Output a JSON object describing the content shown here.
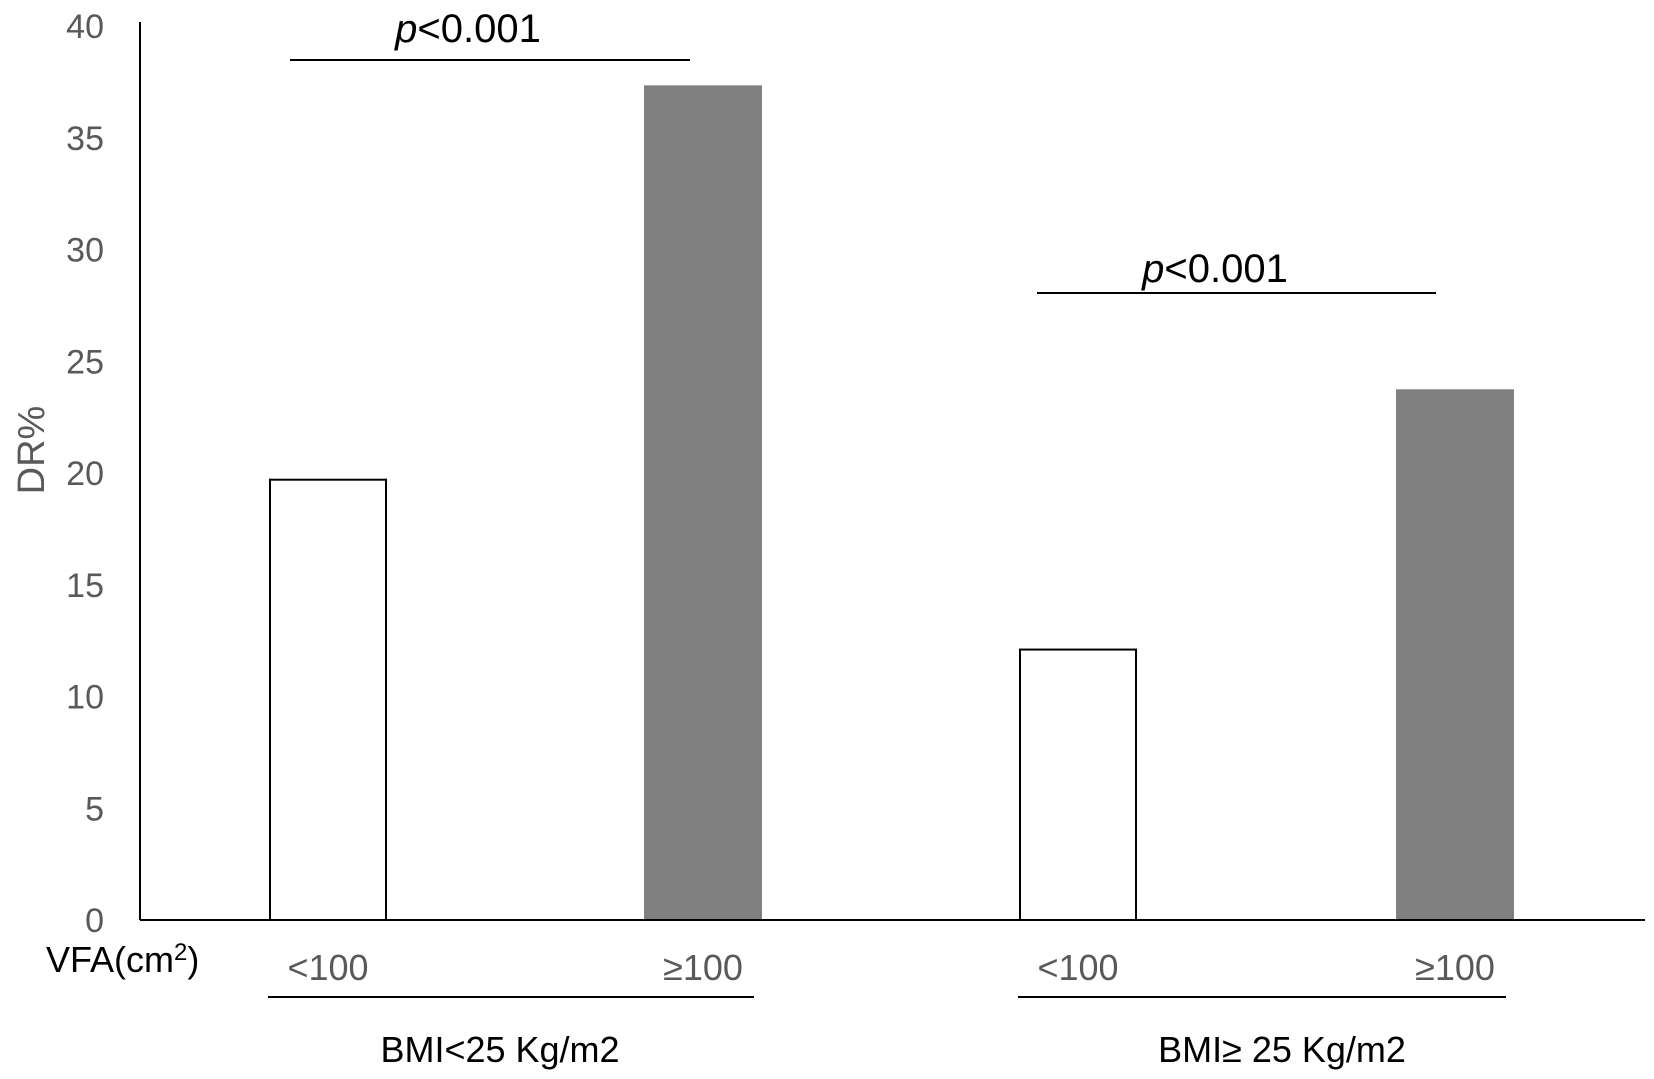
{
  "chart_data": {
    "type": "bar",
    "ylabel": "DR%",
    "ylim": [
      0,
      40
    ],
    "yticks": [
      "0",
      "5",
      "10",
      "15",
      "20",
      "25",
      "30",
      "35",
      "40"
    ],
    "x_axis_title": "VFA(cm",
    "x_axis_title_sup": "2",
    "x_axis_title_close": ")",
    "categories": [
      "<100",
      "≥100",
      "<100",
      "≥100"
    ],
    "values": [
      19.7,
      37.3,
      12.1,
      23.7
    ],
    "bar_fill": [
      "#ffffff",
      "#808080",
      "#ffffff",
      "#808080"
    ],
    "groups": [
      {
        "label": "BMI<25 Kg/m2",
        "p_prefix": "p",
        "p_text": "<0.001"
      },
      {
        "label": "BMI≥ 25 Kg/m2",
        "p_prefix": "p",
        "p_text": "<0.001"
      }
    ],
    "grid": false
  },
  "colors": {
    "axis": "#000000",
    "dark_bar": "#808080",
    "light_bar": "#ffffff",
    "tick_text": "#595959"
  }
}
